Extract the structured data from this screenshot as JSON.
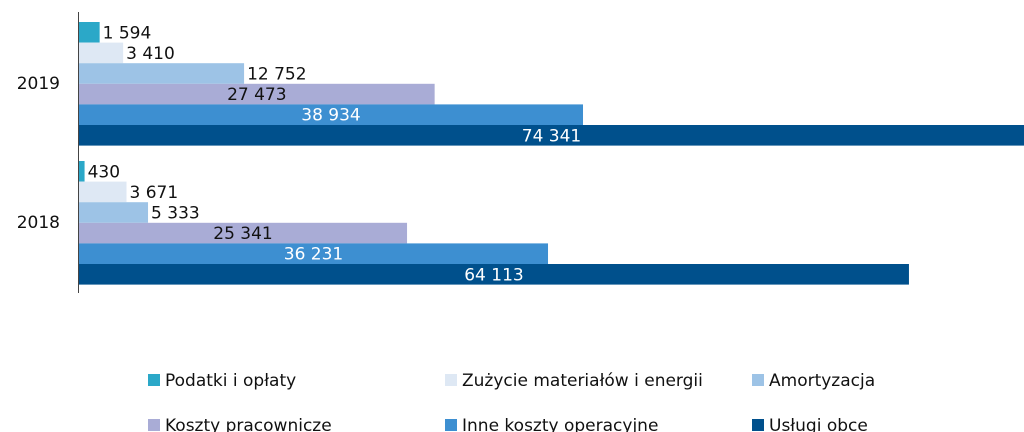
{
  "chart_data": {
    "type": "barh",
    "categories": [
      "2019",
      "2018"
    ],
    "series": [
      {
        "name": "Podatki i opłaty",
        "color": "#2ba8c8",
        "values": [
          1594,
          430
        ],
        "value_labels": [
          "1 594",
          "430"
        ]
      },
      {
        "name": "Zużycie materiałów i energii",
        "color": "#dee8f4",
        "values": [
          3410,
          3671
        ],
        "value_labels": [
          "3 410",
          "3 671"
        ]
      },
      {
        "name": "Amortyzacja",
        "color": "#9dc3e6",
        "values": [
          12752,
          5333
        ],
        "value_labels": [
          "12 752",
          "5 333"
        ]
      },
      {
        "name": "Koszty pracownicze",
        "color": "#a9acd6",
        "values": [
          27473,
          25341
        ],
        "value_labels": [
          "27 473",
          "25 341"
        ]
      },
      {
        "name": "Inne koszty operacyjne",
        "color": "#3d8fd1",
        "values": [
          38934,
          36231
        ],
        "value_labels": [
          "38 934",
          "36 231"
        ]
      },
      {
        "name": "Usługi obce",
        "color": "#00508c",
        "values": [
          74341,
          64113
        ],
        "value_labels": [
          "74 341",
          "64 113"
        ]
      }
    ],
    "xlim": [
      0,
      73000
    ]
  }
}
